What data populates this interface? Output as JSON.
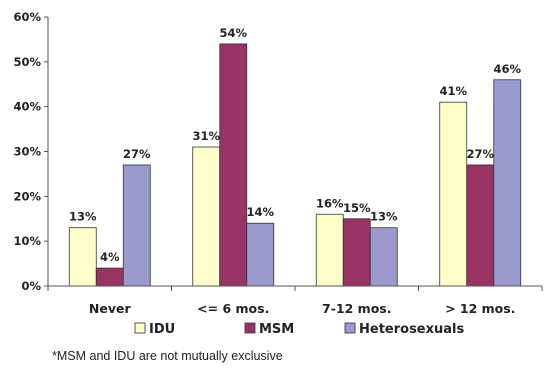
{
  "chart_data": {
    "type": "bar",
    "categories": [
      "Never",
      "<= 6 mos.",
      "7-12 mos.",
      "> 12 mos."
    ],
    "series": [
      {
        "name": "IDU",
        "values": [
          13,
          31,
          16,
          41
        ],
        "labels": [
          "13%",
          "31%",
          "16%",
          "41%"
        ],
        "color": "#ffffcc"
      },
      {
        "name": "MSM",
        "values": [
          4,
          54,
          15,
          27
        ],
        "labels": [
          "4%",
          "54%",
          "15%",
          "27%"
        ],
        "color": "#993366"
      },
      {
        "name": "Heterosexuals",
        "values": [
          27,
          14,
          13,
          46
        ],
        "labels": [
          "27%",
          "14%",
          "13%",
          "46%"
        ],
        "color": "#9999cc"
      }
    ],
    "ylim": [
      0,
      60
    ],
    "yticks": [
      "0%",
      "10%",
      "20%",
      "30%",
      "40%",
      "50%",
      "60%"
    ],
    "grid": false,
    "legend_position": "bottom"
  },
  "footnote": "*MSM and IDU are not mutually exclusive"
}
